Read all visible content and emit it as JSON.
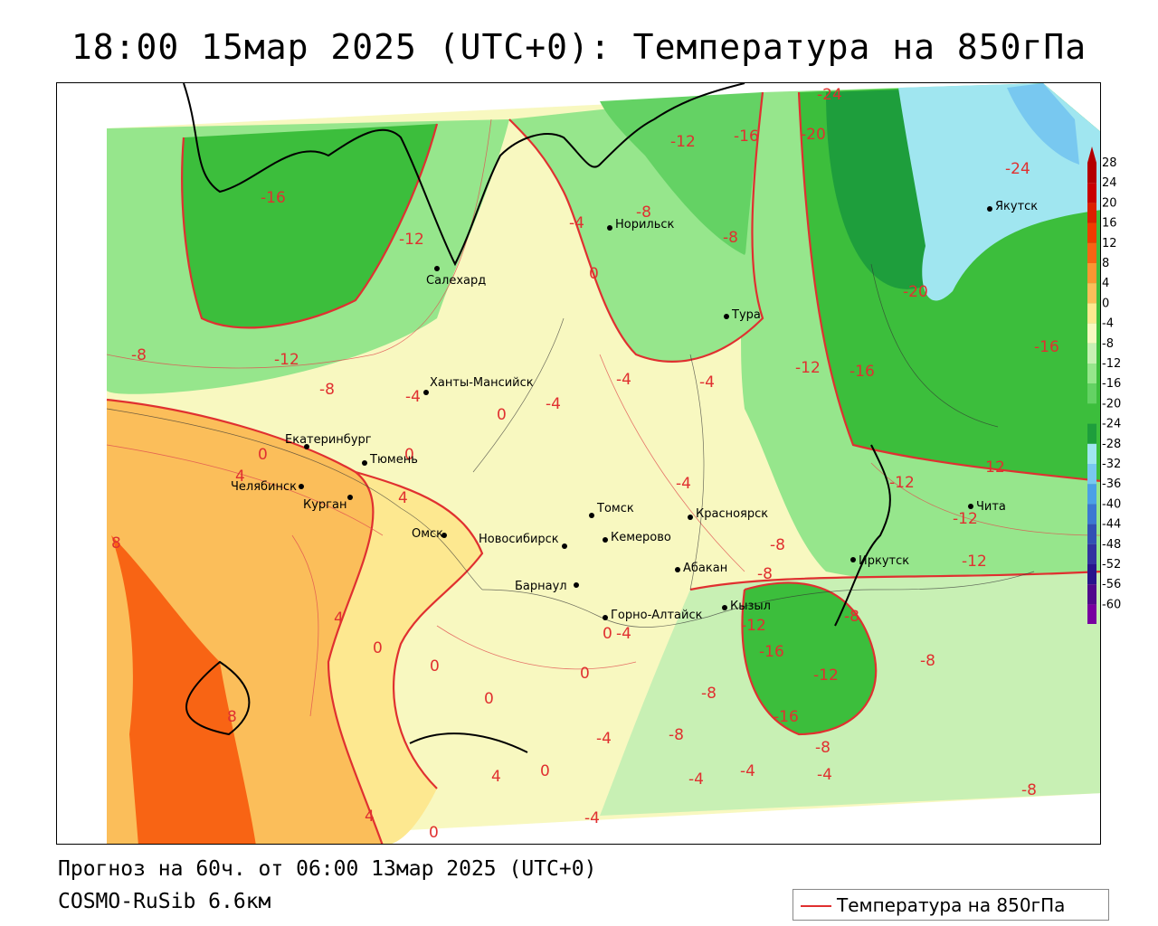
{
  "title": "18:00 15мар 2025 (UTC+0): Температура на 850гПа",
  "forecast_text": "Прогноз на 60ч. от 06:00 13мар 2025 (UTC+0)",
  "model_text": "COSMO-RuSib 6.6км",
  "legend": {
    "label": "Температура на 850гПа",
    "line_color": "#e03030"
  },
  "color_scale": {
    "labels": [
      "28",
      "24",
      "20",
      "16",
      "12",
      "8",
      "4",
      "0",
      "-4",
      "-8",
      "-12",
      "-16",
      "-20",
      "-24",
      "-28",
      "-32",
      "-36",
      "-40",
      "-44",
      "-48",
      "-52",
      "-56",
      "-60"
    ],
    "colors": [
      "#b40000",
      "#c80000",
      "#dc1e00",
      "#f03c00",
      "#f86414",
      "#fa9632",
      "#fbbe5a",
      "#fde890",
      "#f8f8c0",
      "#c8f0b4",
      "#96e68c",
      "#64d264",
      "#3cbe3c",
      "#1e9e3c",
      "#a0e6f0",
      "#78c8f0",
      "#4ba0e6",
      "#3c78d2",
      "#3250b4",
      "#3232a0",
      "#28148c",
      "#500a8c",
      "#7800a0"
    ]
  },
  "cities": [
    {
      "name": "Норильск"
    },
    {
      "name": "Салехард"
    },
    {
      "name": "Тура"
    },
    {
      "name": "Якутск"
    },
    {
      "name": "Ханты-Мансийск"
    },
    {
      "name": "Екатеринбург"
    },
    {
      "name": "Тюмень"
    },
    {
      "name": "Челябинск"
    },
    {
      "name": "Курган"
    },
    {
      "name": "Омск"
    },
    {
      "name": "Новосибирск"
    },
    {
      "name": "Томск"
    },
    {
      "name": "Кемерово"
    },
    {
      "name": "Красноярск"
    },
    {
      "name": "Абакан"
    },
    {
      "name": "Барнаул"
    },
    {
      "name": "Кызыл"
    },
    {
      "name": "Горно-Алтайск"
    },
    {
      "name": "Иркутск"
    },
    {
      "name": "Чита"
    }
  ],
  "contour_labels": [
    "-24",
    "-20",
    "-16",
    "-12",
    "-8",
    "-4",
    "0",
    "4",
    "8"
  ]
}
